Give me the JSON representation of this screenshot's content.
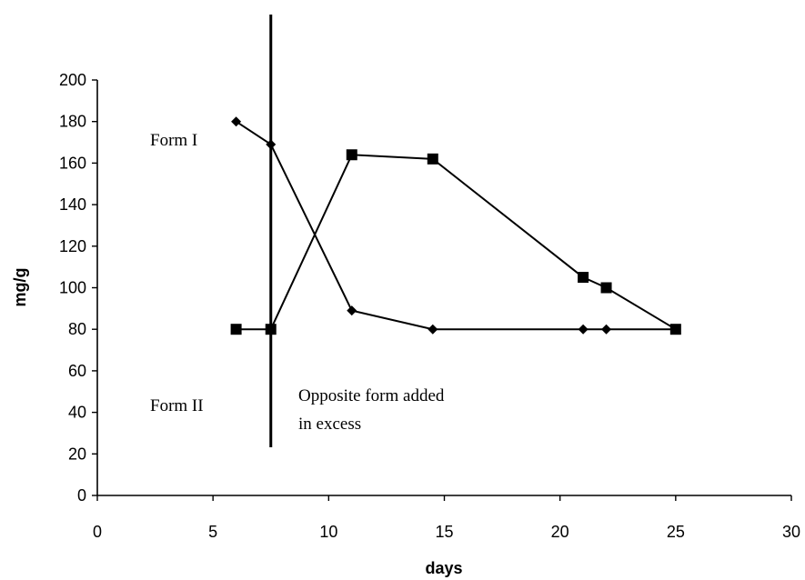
{
  "chart_data": {
    "type": "line",
    "xlabel": "days",
    "ylabel": "mg/g",
    "xlim": [
      0,
      30
    ],
    "ylim": [
      0,
      200
    ],
    "x_ticks": [
      0,
      5,
      10,
      15,
      20,
      25,
      30
    ],
    "y_ticks": [
      0,
      20,
      40,
      60,
      80,
      100,
      120,
      140,
      160,
      180,
      200
    ],
    "grid": false,
    "legend": "none",
    "series": [
      {
        "marker": "diamond",
        "color": "#000000",
        "x": [
          6,
          7.5,
          11,
          14.5,
          21,
          22,
          25
        ],
        "y": [
          180,
          169,
          89,
          80,
          80,
          80,
          80
        ]
      },
      {
        "marker": "square",
        "color": "#000000",
        "x": [
          6,
          7.5,
          11,
          14.5,
          21,
          22,
          25
        ],
        "y": [
          80,
          80,
          164,
          162,
          105,
          100,
          80
        ]
      }
    ],
    "reference_line": {
      "x": 7.5
    },
    "annotations": {
      "form1": "Form I",
      "form2": "Form II",
      "opposite_line1": "Opposite form added",
      "opposite_line2": "in excess"
    }
  }
}
